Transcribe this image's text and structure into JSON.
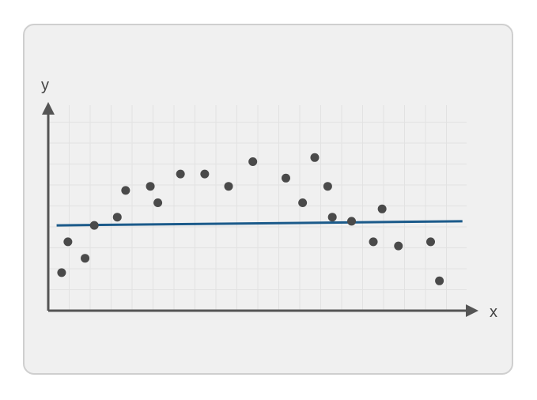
{
  "chart_data": {
    "type": "scatter",
    "title": "",
    "xlabel": "x",
    "ylabel": "y",
    "xlim": [
      0,
      1
    ],
    "ylim": [
      0,
      1
    ],
    "grid": true,
    "legend": "none",
    "colors": {
      "points": "#4a4a4a",
      "trend_line": "#1b5a8a",
      "axis": "#555555",
      "grid": "#e2e2e2",
      "background": "#f0f0f0"
    },
    "points": [
      {
        "x": 0.032,
        "y": 0.185
      },
      {
        "x": 0.047,
        "y": 0.335
      },
      {
        "x": 0.088,
        "y": 0.255
      },
      {
        "x": 0.11,
        "y": 0.415
      },
      {
        "x": 0.165,
        "y": 0.455
      },
      {
        "x": 0.185,
        "y": 0.585
      },
      {
        "x": 0.244,
        "y": 0.605
      },
      {
        "x": 0.262,
        "y": 0.525
      },
      {
        "x": 0.316,
        "y": 0.665
      },
      {
        "x": 0.374,
        "y": 0.665
      },
      {
        "x": 0.431,
        "y": 0.605
      },
      {
        "x": 0.489,
        "y": 0.725
      },
      {
        "x": 0.568,
        "y": 0.645
      },
      {
        "x": 0.608,
        "y": 0.525
      },
      {
        "x": 0.637,
        "y": 0.745
      },
      {
        "x": 0.668,
        "y": 0.605
      },
      {
        "x": 0.679,
        "y": 0.455
      },
      {
        "x": 0.725,
        "y": 0.435
      },
      {
        "x": 0.777,
        "y": 0.335
      },
      {
        "x": 0.798,
        "y": 0.495
      },
      {
        "x": 0.837,
        "y": 0.315
      },
      {
        "x": 0.914,
        "y": 0.335
      },
      {
        "x": 0.935,
        "y": 0.145
      }
    ],
    "trend_line": {
      "x": [
        0.02,
        0.99
      ],
      "y": [
        0.415,
        0.435
      ]
    }
  }
}
